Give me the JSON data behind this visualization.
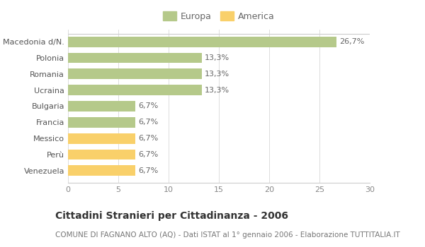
{
  "categories": [
    "Venezuela",
    "Perù",
    "Messico",
    "Francia",
    "Bulgaria",
    "Ucraina",
    "Romania",
    "Polonia",
    "Macedonia d/N."
  ],
  "values": [
    6.7,
    6.7,
    6.7,
    6.7,
    6.7,
    13.3,
    13.3,
    13.3,
    26.7
  ],
  "colors": [
    "#f9d06a",
    "#f9d06a",
    "#f9d06a",
    "#b5c98a",
    "#b5c98a",
    "#b5c98a",
    "#b5c98a",
    "#b5c98a",
    "#b5c98a"
  ],
  "labels": [
    "6,7%",
    "6,7%",
    "6,7%",
    "6,7%",
    "6,7%",
    "13,3%",
    "13,3%",
    "13,3%",
    "26,7%"
  ],
  "legend": [
    {
      "label": "Europa",
      "color": "#b5c98a"
    },
    {
      "label": "America",
      "color": "#f9d06a"
    }
  ],
  "xlim": [
    0,
    30
  ],
  "xticks": [
    0,
    5,
    10,
    15,
    20,
    25,
    30
  ],
  "title": "Cittadini Stranieri per Cittadinanza - 2006",
  "subtitle": "COMUNE DI FAGNANO ALTO (AQ) - Dati ISTAT al 1° gennaio 2006 - Elaborazione TUTTITALIA.IT",
  "title_fontsize": 10,
  "subtitle_fontsize": 7.5,
  "label_fontsize": 8,
  "tick_fontsize": 8,
  "bg_color": "#ffffff",
  "grid_color": "#dddddd"
}
